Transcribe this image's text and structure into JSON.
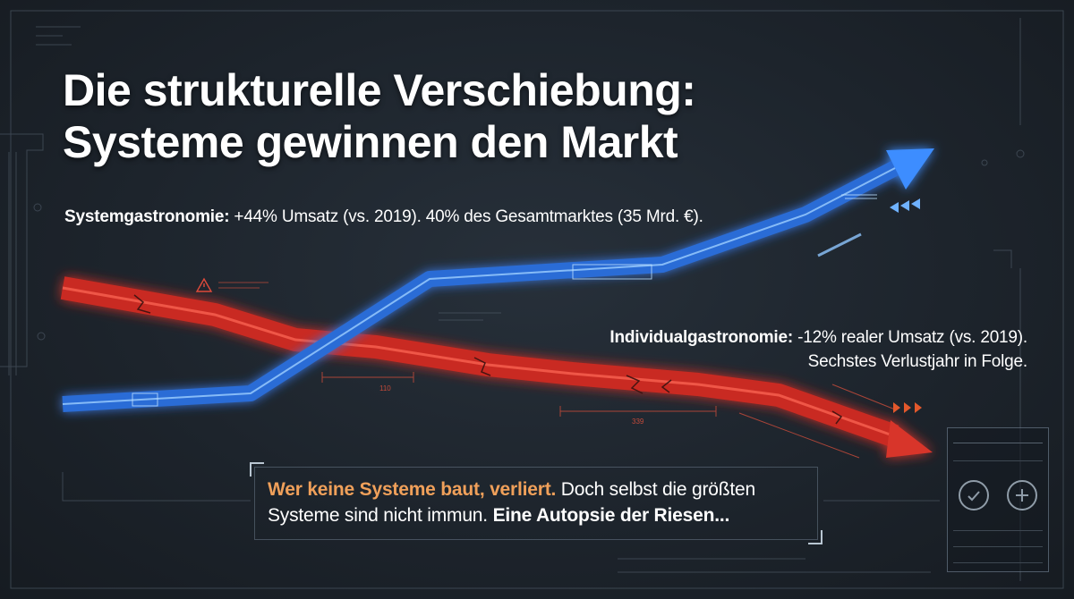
{
  "title": {
    "line1": "Die strukturelle Verschiebung:",
    "line2": "Systeme gewinnen den Markt"
  },
  "system_stat": {
    "label": "Systemgastronomie:",
    "text": " +44% Umsatz (vs. 2019). 40% des Gesamtmarktes (35 Mrd. €)."
  },
  "individual_stat": {
    "label": "Individualgastronomie:",
    "text": " -12% realer Umsatz (vs. 2019).",
    "line2": "Sechstes Verlustjahr in Folge."
  },
  "callout": {
    "highlight": "Wer keine Systeme baut, verliert.",
    "text1": " Doch selbst die größten Systeme sind nicht immun. ",
    "bold": "Eine Autopsie der Riesen..."
  },
  "colors": {
    "background": "#1c2229",
    "rising_arrow": "#3d8dff",
    "falling_arrow": "#e2382c",
    "highlight": "#f0a05a"
  },
  "icons": [
    "warning-icon",
    "check-gauge-icon",
    "plus-gauge-icon",
    "chevrons-icon"
  ]
}
